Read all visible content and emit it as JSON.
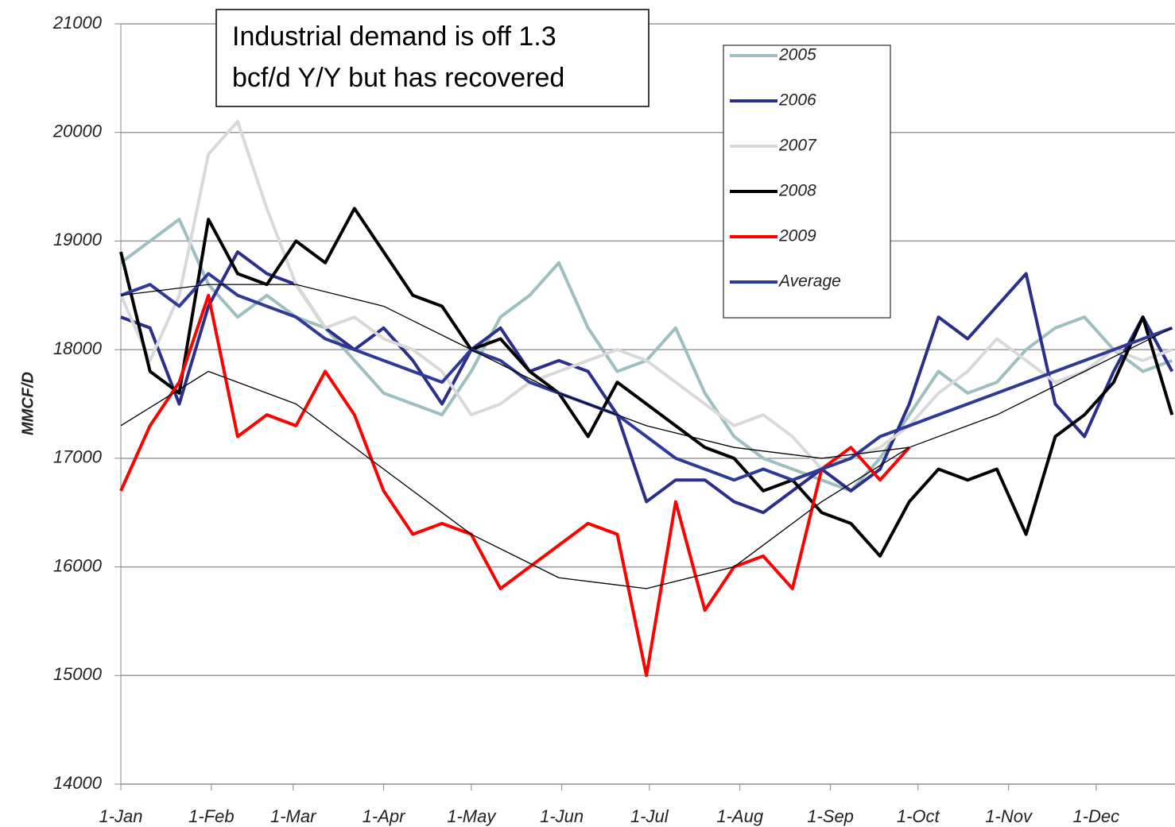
{
  "chart_data": {
    "type": "line",
    "annotation": [
      "Industrial demand is off 1.3",
      "bcf/d Y/Y but has recovered"
    ],
    "ylabel": "MMCF/D",
    "x": [
      0,
      10,
      20,
      30,
      40,
      50,
      60,
      70,
      80,
      90,
      100,
      110,
      120,
      130,
      140,
      150,
      160,
      170,
      180,
      190,
      200,
      210,
      220,
      230,
      240,
      250,
      260,
      270,
      280,
      290,
      300,
      310,
      320,
      330,
      340,
      350,
      360
    ],
    "xlim": [
      0,
      361
    ],
    "xticks": [
      {
        "value": 0,
        "label": "1-Jan"
      },
      {
        "value": 31,
        "label": "1-Feb"
      },
      {
        "value": 59,
        "label": "1-Mar"
      },
      {
        "value": 90,
        "label": "1-Apr"
      },
      {
        "value": 120,
        "label": "1-May"
      },
      {
        "value": 151,
        "label": "1-Jun"
      },
      {
        "value": 181,
        "label": "1-Jul"
      },
      {
        "value": 212,
        "label": "1-Aug"
      },
      {
        "value": 243,
        "label": "1-Sep"
      },
      {
        "value": 273,
        "label": "1-Oct"
      },
      {
        "value": 304,
        "label": "1-Nov"
      },
      {
        "value": 334,
        "label": "1-Dec"
      }
    ],
    "ylim": [
      14000,
      21000
    ],
    "yticks": [
      14000,
      15000,
      16000,
      17000,
      18000,
      19000,
      20000,
      21000
    ],
    "grid": true,
    "series": [
      {
        "name": "2005",
        "color": "#9dbfc0",
        "values": [
          18800,
          19000,
          19200,
          18600,
          18300,
          18500,
          18300,
          18200,
          17900,
          17600,
          17500,
          17400,
          17800,
          18300,
          18500,
          18800,
          18200,
          17800,
          17900,
          18200,
          17600,
          17200,
          17000,
          16900,
          16800,
          16700,
          17000,
          17400,
          17800,
          17600,
          17700,
          18000,
          18200,
          18300,
          18000,
          17800,
          17900
        ]
      },
      {
        "name": "2006",
        "color": "#2b2f8a",
        "values": [
          18300,
          18200,
          17500,
          18400,
          18900,
          18700,
          18600,
          18200,
          18000,
          18200,
          17900,
          17500,
          18000,
          18200,
          17800,
          17900,
          17800,
          17400,
          16600,
          16800,
          16800,
          16600,
          16500,
          16700,
          16900,
          16700,
          16900,
          17500,
          18300,
          18100,
          18400,
          18700,
          17500,
          17200,
          17800,
          18300,
          17800
        ]
      },
      {
        "name": "2007",
        "color": "#d9d9d9",
        "values": [
          18500,
          17900,
          18500,
          19800,
          20100,
          19300,
          18600,
          18200,
          18300,
          18100,
          18000,
          17800,
          17400,
          17500,
          17700,
          17800,
          17900,
          18000,
          17900,
          17700,
          17500,
          17300,
          17400,
          17200,
          16900,
          17000,
          17100,
          17300,
          17600,
          17800,
          18100,
          17900,
          17700,
          17800,
          18000,
          17900,
          18000
        ]
      },
      {
        "name": "2008",
        "color": "#000000",
        "values": [
          18900,
          17800,
          17600,
          19200,
          18700,
          18600,
          19000,
          18800,
          19300,
          18900,
          18500,
          18400,
          18000,
          18100,
          17800,
          17600,
          17200,
          17700,
          17500,
          17300,
          17100,
          17000,
          16700,
          16800,
          16500,
          16400,
          16100,
          16600,
          16900,
          16800,
          16900,
          16300,
          17200,
          17400,
          17700,
          18300,
          17400
        ]
      },
      {
        "name": "2009",
        "color": "#ff0000",
        "values": [
          16700,
          17300,
          17700,
          18500,
          17200,
          17400,
          17300,
          17800,
          17400,
          16700,
          16300,
          16400,
          16300,
          15800,
          16000,
          16200,
          16400,
          16300,
          15000,
          16600,
          15600,
          16000,
          16100,
          15800,
          16900,
          17100,
          16800,
          17100,
          null,
          null,
          null,
          null,
          null,
          null,
          null,
          null,
          null
        ]
      },
      {
        "name": "Average",
        "color": "#2f3a96",
        "values": [
          18500,
          18600,
          18400,
          18700,
          18500,
          18400,
          18300,
          18100,
          18000,
          17900,
          17800,
          17700,
          18000,
          17900,
          17700,
          17600,
          17500,
          17400,
          17200,
          17000,
          16900,
          16800,
          16900,
          16800,
          16900,
          17000,
          17200,
          17300,
          17400,
          17500,
          17600,
          17700,
          17800,
          17900,
          18000,
          18100,
          18200
        ]
      }
    ],
    "trend_lines": [
      {
        "color": "#000000",
        "x": [
          0,
          30,
          60,
          90,
          120,
          150,
          180,
          210,
          240,
          270,
          300,
          330,
          360
        ],
        "values": [
          18500,
          18600,
          18600,
          18400,
          18000,
          17600,
          17300,
          17100,
          17000,
          17100,
          17400,
          17800,
          18200
        ]
      },
      {
        "color": "#000000",
        "x": [
          0,
          30,
          60,
          90,
          120,
          150,
          180,
          210,
          240,
          270
        ],
        "values": [
          17300,
          17800,
          17500,
          16900,
          16300,
          15900,
          15800,
          16000,
          16600,
          17100
        ]
      }
    ]
  }
}
